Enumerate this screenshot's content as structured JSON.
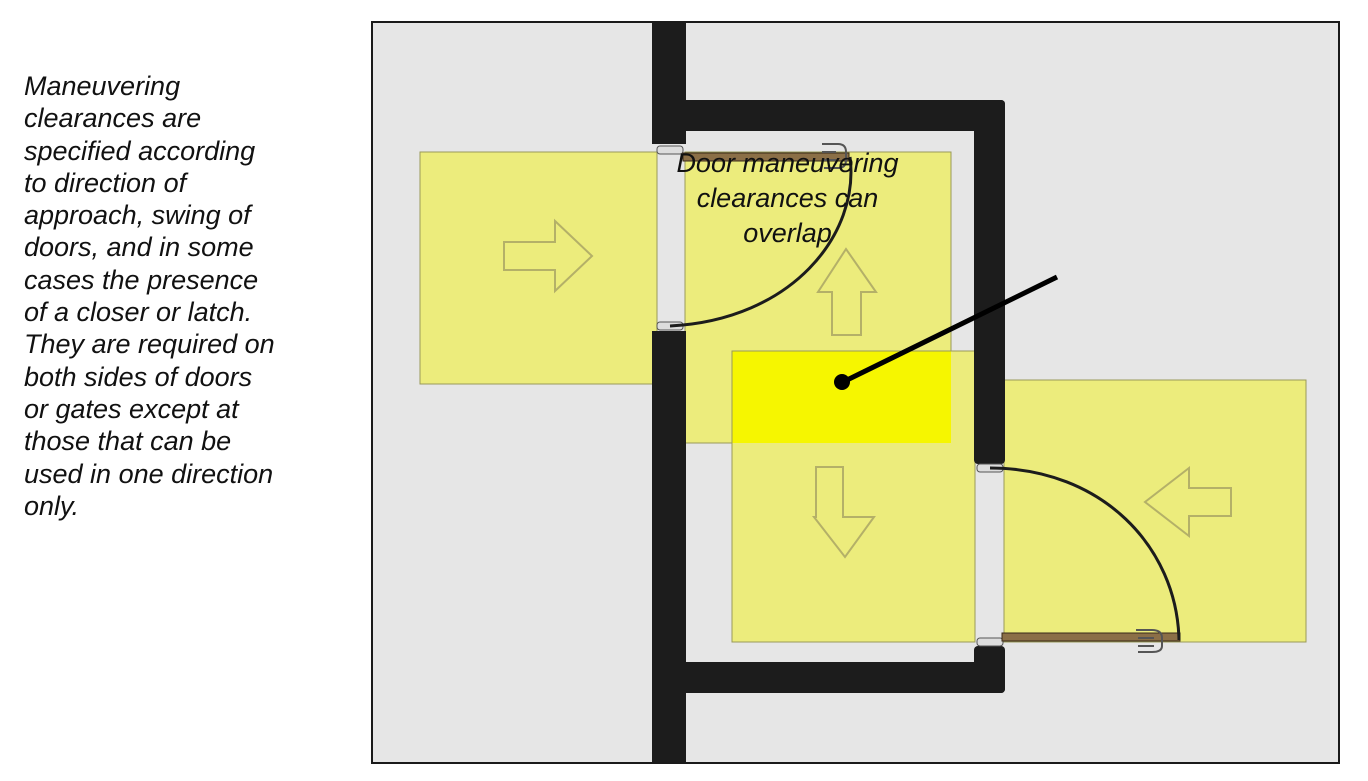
{
  "caption": {
    "text": "Maneuvering\nclearances are\nspecified according\nto direction of\napproach, swing of\ndoors, and in some\ncases the presence\nof a closer or latch.\nThey are required on\nboth sides of doors\nor gates except at\nthose that can be\nused in one direction\nonly."
  },
  "callout": {
    "text": "Door maneuvering\nclearances can\noverlap"
  },
  "colors": {
    "background": "#e6e6e6",
    "wall": "#1c1c1c",
    "clearance": "#ecec7c",
    "overlap": "#f6f600",
    "door": "#8b6f47",
    "arrow_outline": "#b4b068"
  }
}
